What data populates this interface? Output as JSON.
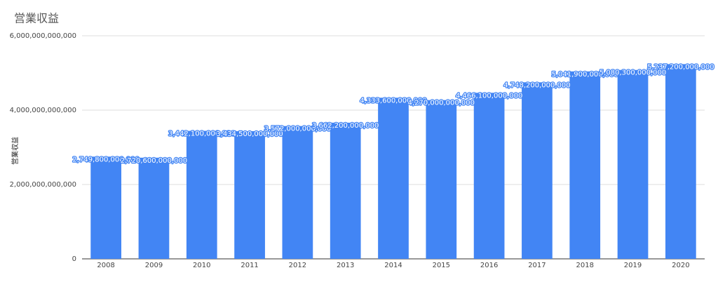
{
  "chart_data": {
    "type": "bar",
    "title": "営業収益",
    "y_label": "営業収益",
    "categories": [
      "2008",
      "2009",
      "2010",
      "2011",
      "2012",
      "2013",
      "2014",
      "2015",
      "2016",
      "2017",
      "2018",
      "2019",
      "2020"
    ],
    "values": [
      2749800000000,
      2720600000000,
      3442100000000,
      3434500000000,
      3572000000000,
      3662200000000,
      4333600000000,
      4270000000000,
      4466100000000,
      4748200000000,
      5041900000000,
      5080300000000,
      5237200000000
    ],
    "value_labels": [
      "2,749,800,000,000",
      "2,720,600,000,000",
      "3,442,100,000,000",
      "3,434,500,000,000",
      "3,572,000,000,000",
      "3,662,200,000,000",
      "4,333,600,000,000",
      "4,270,000,000,000",
      "4,466,100,000,000",
      "4,748,200,000,000",
      "5,041,900,000,000",
      "5,080,300,000,000",
      "5,237,200,000,000"
    ],
    "color": "#4285f4",
    "ylim": [
      0,
      6000000000000
    ],
    "yticks": [
      0,
      {
        "value": 2000000000000,
        "label": "2,000,000,000,000"
      },
      {
        "value": 4000000000000,
        "label": "4,000,000,000,000"
      },
      {
        "value": 6000000000000,
        "label": "6,000,000,000,000"
      }
    ],
    "grid": true
  }
}
